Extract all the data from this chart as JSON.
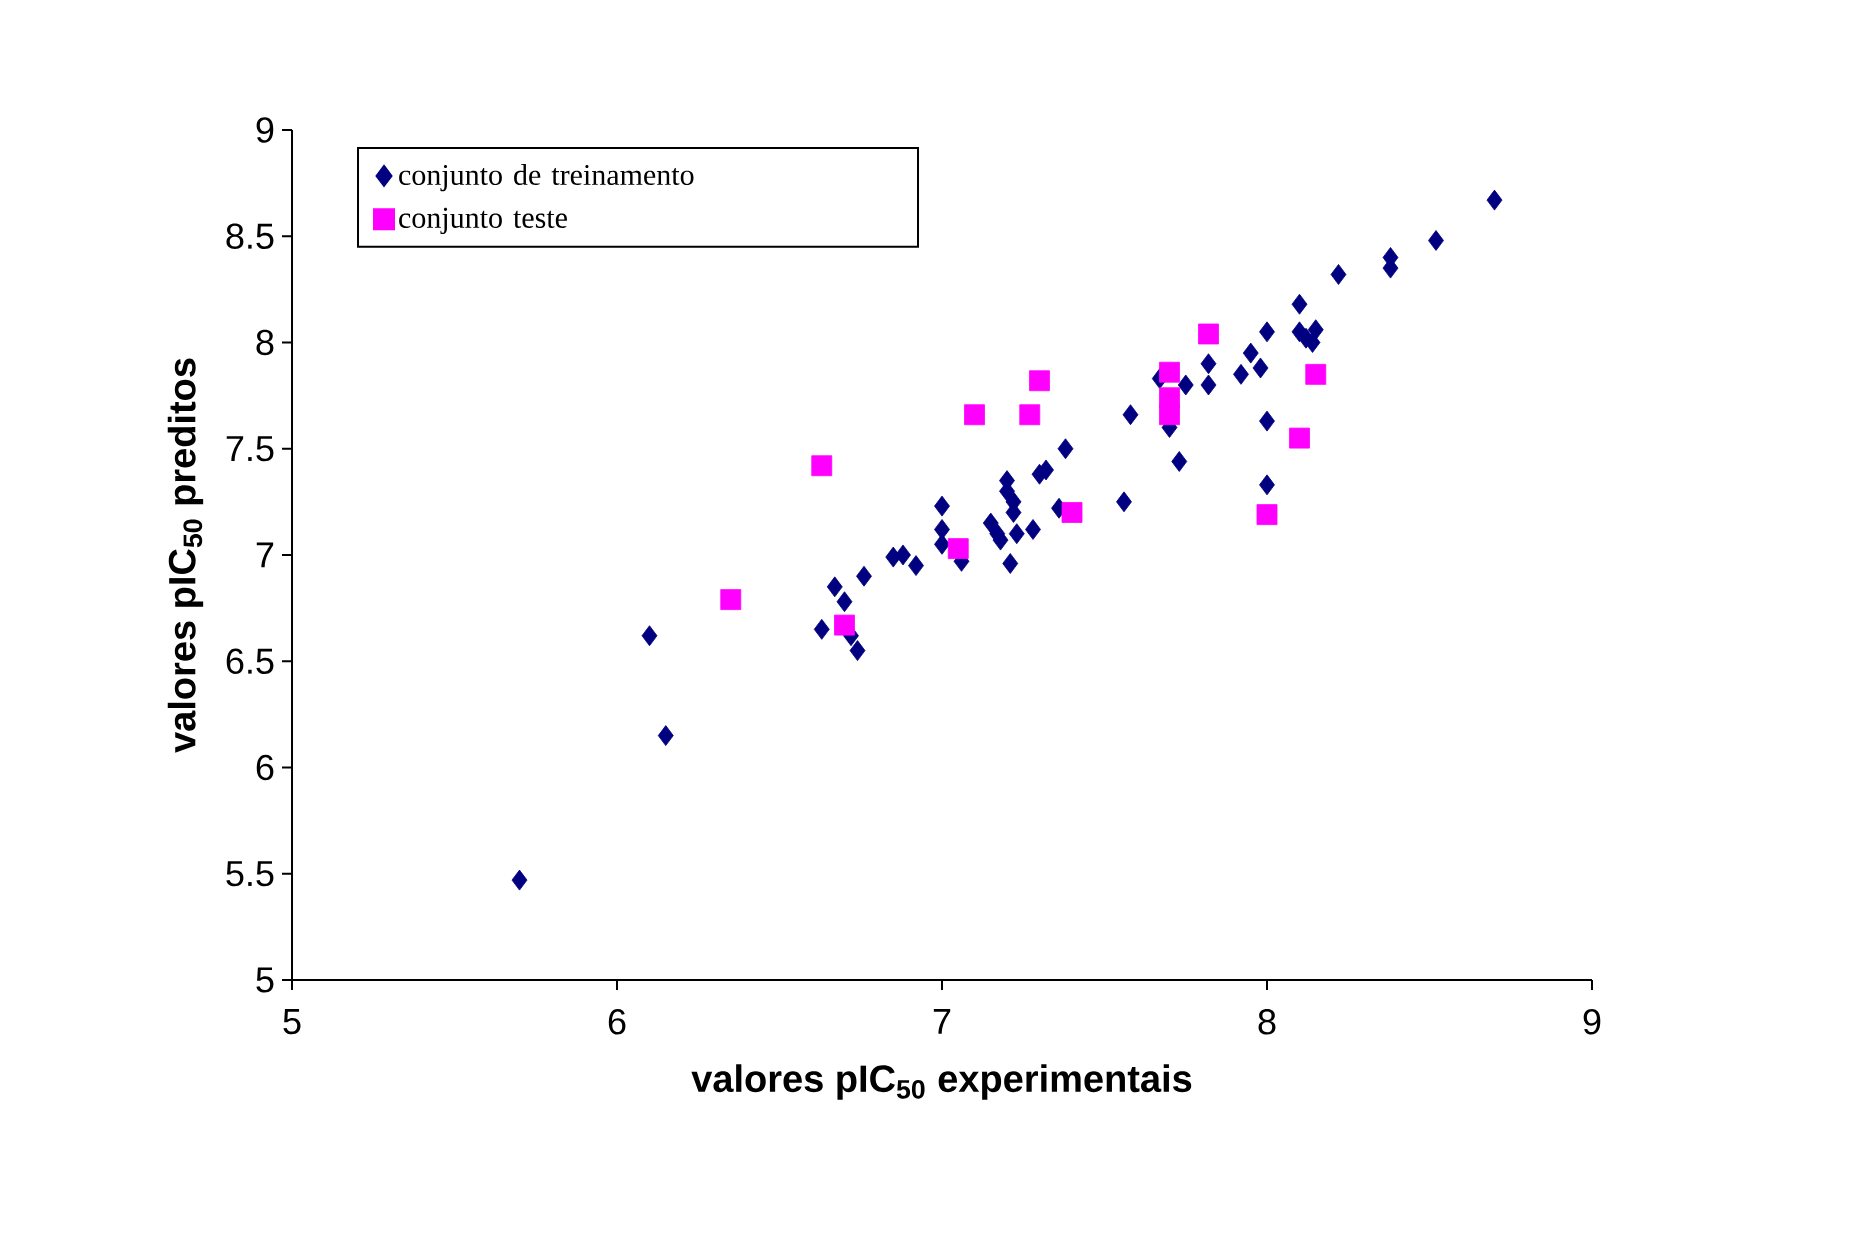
{
  "chart_data": {
    "type": "scatter",
    "xlabel": "valores pIC$_{50}$ experimentais",
    "ylabel": "valores pIC$_{50}$ preditos",
    "xlim": [
      5,
      9
    ],
    "ylim": [
      5,
      9
    ],
    "xticks": [
      5,
      6,
      7,
      8,
      9
    ],
    "yticks": [
      5,
      5.5,
      6,
      6.5,
      7,
      7.5,
      8,
      8.5,
      9
    ],
    "grid": false,
    "legend": "top left",
    "series": [
      {
        "name": "conjunto de treinamento",
        "color": "#000080",
        "marker": "diamond",
        "x": [
          5.7,
          6.1,
          6.15,
          6.63,
          6.67,
          6.7,
          6.72,
          6.74,
          6.76,
          6.85,
          6.88,
          6.92,
          7.0,
          7.0,
          7.0,
          7.06,
          7.15,
          7.17,
          7.18,
          7.2,
          7.2,
          7.22,
          7.22,
          7.21,
          7.23,
          7.28,
          7.3,
          7.32,
          7.38,
          7.36,
          7.56,
          7.58,
          7.7,
          7.67,
          7.73,
          7.75,
          7.82,
          7.82,
          7.92,
          7.95,
          7.98,
          8.0,
          8.0,
          8.0,
          8.1,
          8.1,
          8.12,
          8.15,
          8.14,
          8.22,
          8.38,
          8.38,
          8.52,
          8.7
        ],
        "values": [
          5.47,
          6.62,
          6.15,
          6.65,
          6.85,
          6.78,
          6.62,
          6.55,
          6.9,
          6.99,
          7.0,
          6.95,
          7.23,
          7.12,
          7.05,
          6.97,
          7.15,
          7.1,
          7.07,
          7.3,
          7.35,
          7.25,
          7.2,
          6.96,
          7.1,
          7.12,
          7.38,
          7.4,
          7.5,
          7.22,
          7.25,
          7.66,
          7.6,
          7.83,
          7.44,
          7.8,
          7.8,
          7.9,
          7.85,
          7.95,
          7.88,
          8.05,
          7.63,
          7.33,
          8.18,
          8.05,
          8.02,
          8.06,
          8.0,
          8.32,
          8.35,
          8.4,
          8.48,
          8.67
        ]
      },
      {
        "name": "conjunto teste",
        "color": "#ff00ff",
        "marker": "square",
        "x": [
          6.35,
          6.63,
          6.7,
          7.05,
          7.1,
          7.27,
          7.3,
          7.4,
          7.7,
          7.7,
          7.7,
          7.82,
          8.0,
          8.1,
          8.15
        ],
        "values": [
          6.79,
          7.42,
          6.67,
          7.03,
          7.66,
          7.66,
          7.82,
          7.2,
          7.86,
          7.74,
          7.66,
          8.04,
          7.19,
          7.55,
          7.85
        ]
      }
    ]
  }
}
